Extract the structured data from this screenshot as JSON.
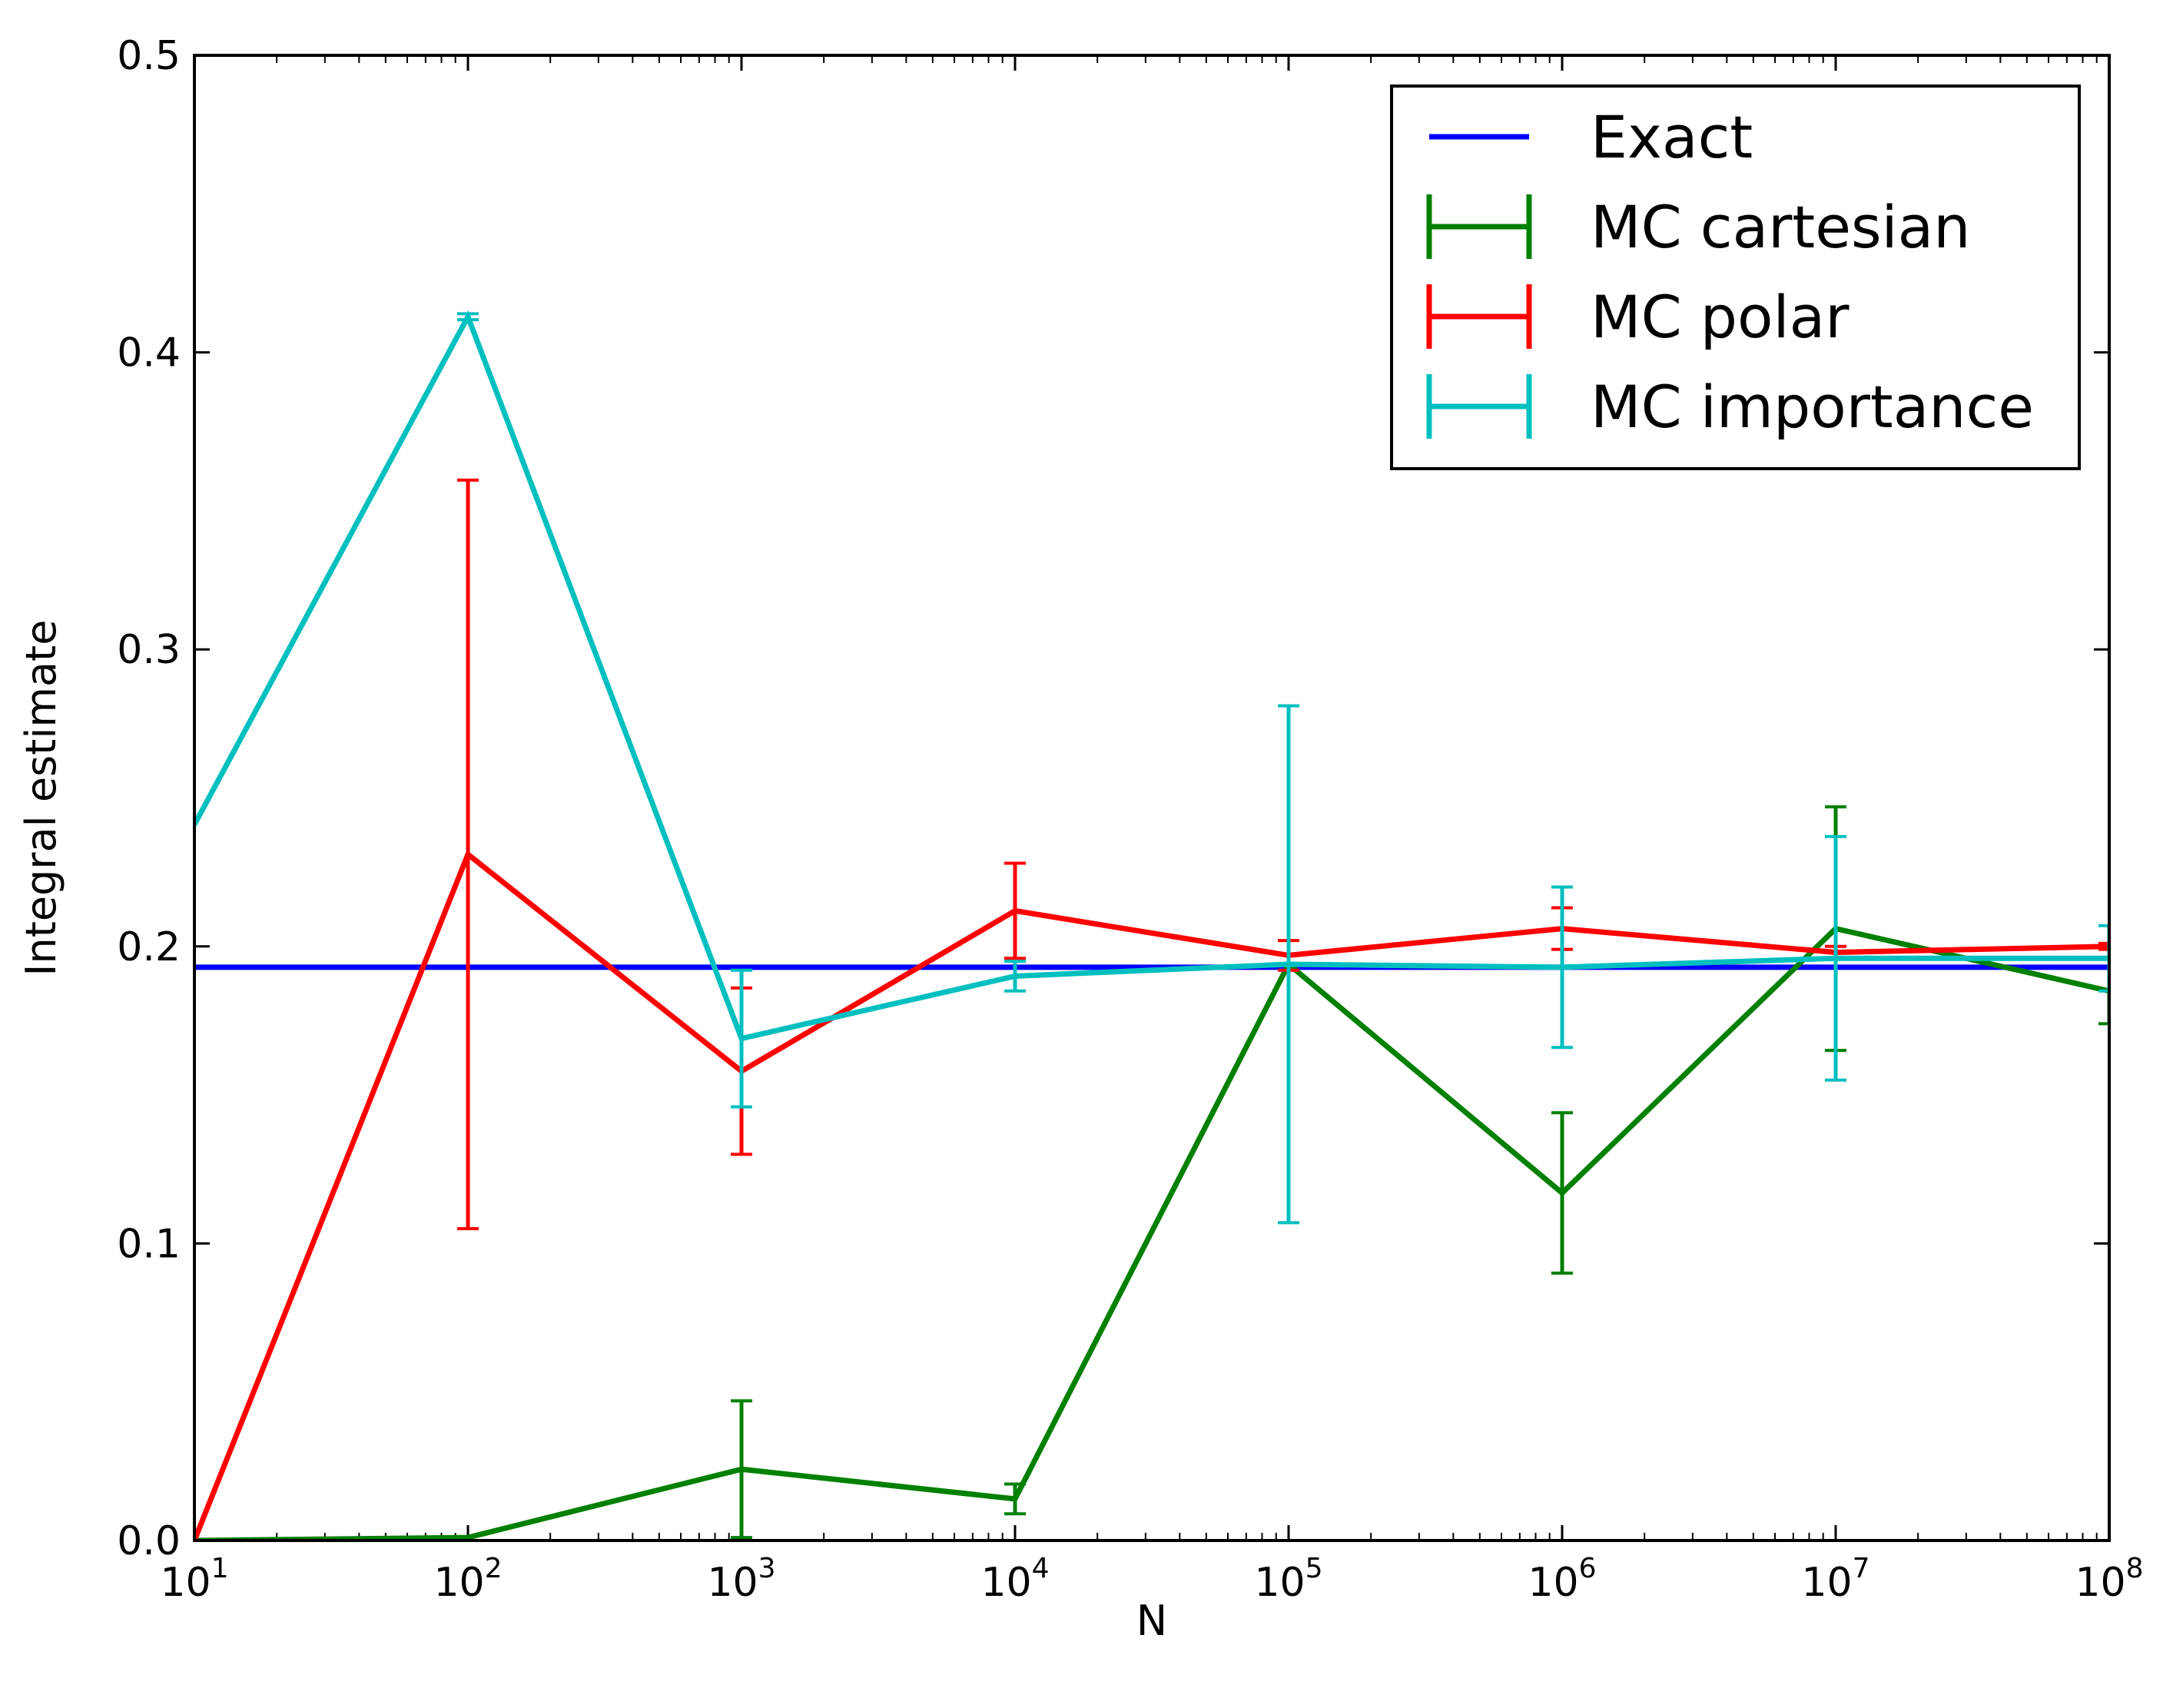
{
  "chart_data": {
    "type": "line",
    "title": "",
    "xlabel": "N",
    "ylabel": "Integral estimate",
    "xscale": "log",
    "xlim": [
      10,
      100000000
    ],
    "ylim": [
      0,
      0.5
    ],
    "grid": false,
    "legend_position": "top-right",
    "x_ticks": [
      {
        "value": 10,
        "base": "10",
        "exp": "1"
      },
      {
        "value": 100,
        "base": "10",
        "exp": "2"
      },
      {
        "value": 1000,
        "base": "10",
        "exp": "3"
      },
      {
        "value": 10000,
        "base": "10",
        "exp": "4"
      },
      {
        "value": 100000,
        "base": "10",
        "exp": "5"
      },
      {
        "value": 1000000,
        "base": "10",
        "exp": "6"
      },
      {
        "value": 10000000,
        "base": "10",
        "exp": "7"
      },
      {
        "value": 100000000,
        "base": "10",
        "exp": "8"
      }
    ],
    "y_ticks": [
      {
        "value": 0.0,
        "label": "0.0"
      },
      {
        "value": 0.1,
        "label": "0.1"
      },
      {
        "value": 0.2,
        "label": "0.2"
      },
      {
        "value": 0.3,
        "label": "0.3"
      },
      {
        "value": 0.4,
        "label": "0.4"
      },
      {
        "value": 0.5,
        "label": "0.5"
      }
    ],
    "series": [
      {
        "name": "Exact",
        "color": "#0000ff",
        "kind": "line",
        "x": [
          10,
          100000000
        ],
        "y": [
          0.193,
          0.193
        ]
      },
      {
        "name": "MC cartesian",
        "color": "#008000",
        "kind": "errorbar",
        "x": [
          10,
          100,
          1000,
          10000,
          100000,
          1000000,
          10000000,
          100000000
        ],
        "y": [
          0.0,
          0.001,
          0.024,
          0.014,
          0.194,
          0.117,
          0.206,
          0.185
        ],
        "yerr": [
          0.0,
          0.0,
          0.023,
          0.005,
          0.0,
          0.027,
          0.041,
          0.011
        ]
      },
      {
        "name": "MC polar",
        "color": "#ff0000",
        "kind": "errorbar",
        "x": [
          10,
          100,
          1000,
          10000,
          100000,
          1000000,
          10000000,
          100000000
        ],
        "y": [
          0.0,
          0.231,
          0.158,
          0.212,
          0.197,
          0.206,
          0.198,
          0.2
        ],
        "yerr": [
          0.0,
          0.126,
          0.028,
          0.016,
          0.005,
          0.007,
          0.002,
          0.001
        ]
      },
      {
        "name": "MC importance",
        "color": "#00bfbf",
        "kind": "errorbar",
        "x": [
          10,
          100,
          1000,
          10000,
          100000,
          1000000,
          10000000,
          100000000
        ],
        "y": [
          0.241,
          0.412,
          0.169,
          0.19,
          0.194,
          0.193,
          0.196,
          0.196
        ],
        "yerr": [
          0.0,
          0.001,
          0.023,
          0.005,
          0.087,
          0.027,
          0.041,
          0.011
        ]
      }
    ]
  }
}
